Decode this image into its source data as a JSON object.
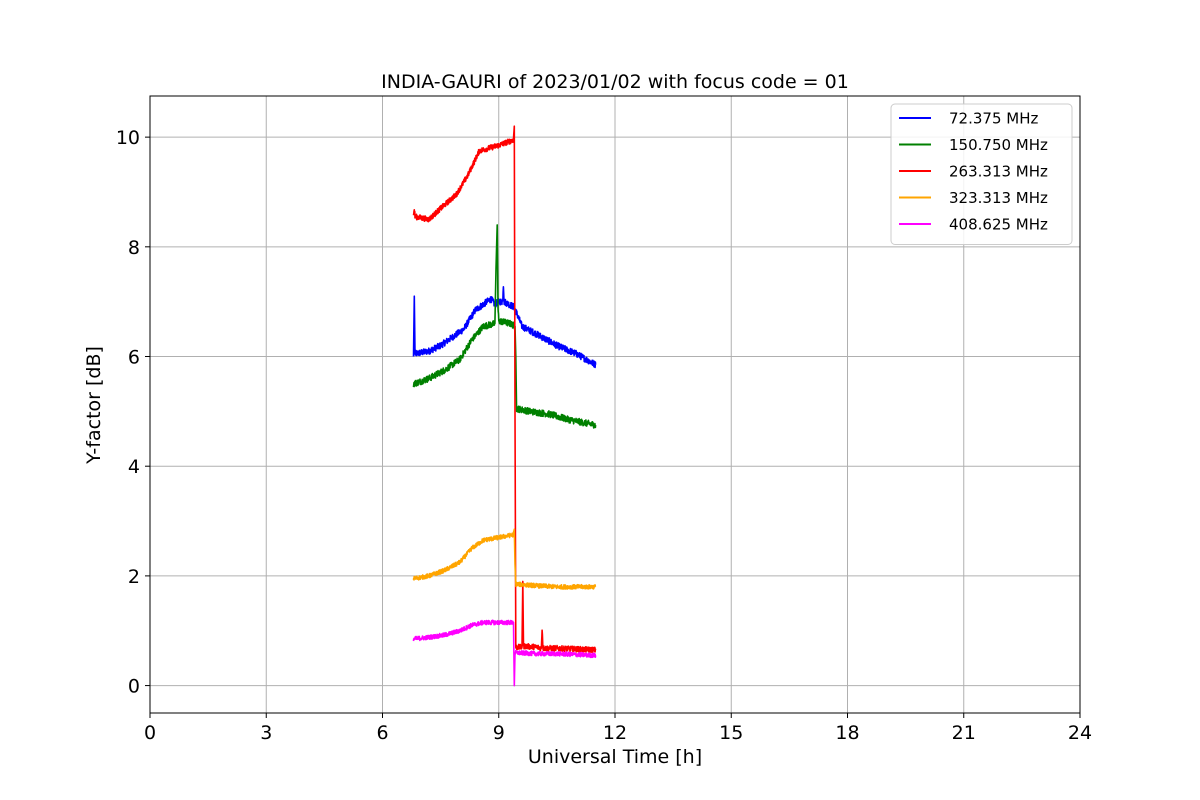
{
  "chart_data": {
    "type": "line",
    "title": "INDIA-GAURI of 2023/01/02 with focus code = 01",
    "xlabel": "Universal Time [h]",
    "ylabel": "Y-factor [dB]",
    "xlim": [
      0,
      24
    ],
    "ylim": [
      -0.5,
      10.75
    ],
    "xticks": [
      0,
      3,
      6,
      9,
      12,
      15,
      18,
      21,
      24
    ],
    "yticks": [
      0,
      2,
      4,
      6,
      8,
      10
    ],
    "grid": true,
    "legend_position": "top-right",
    "series": [
      {
        "name": " 72.375 MHz",
        "color": "#0000ff",
        "noise": 0.06,
        "points": [
          [
            6.8,
            6.0
          ],
          [
            6.82,
            7.1
          ],
          [
            6.84,
            6.05
          ],
          [
            7.2,
            6.1
          ],
          [
            7.5,
            6.2
          ],
          [
            7.8,
            6.35
          ],
          [
            8.1,
            6.5
          ],
          [
            8.4,
            6.85
          ],
          [
            8.7,
            7.0
          ],
          [
            8.8,
            7.05
          ],
          [
            8.9,
            6.95
          ],
          [
            9.0,
            7.0
          ],
          [
            9.1,
            7.0
          ],
          [
            9.12,
            7.3
          ],
          [
            9.14,
            7.0
          ],
          [
            9.4,
            6.9
          ],
          [
            9.6,
            6.55
          ],
          [
            10.0,
            6.4
          ],
          [
            10.5,
            6.2
          ],
          [
            11.0,
            6.05
          ],
          [
            11.5,
            5.85
          ]
        ]
      },
      {
        "name": "150.750 MHz",
        "color": "#008000",
        "noise": 0.06,
        "points": [
          [
            6.8,
            5.5
          ],
          [
            7.2,
            5.6
          ],
          [
            7.6,
            5.75
          ],
          [
            8.0,
            5.95
          ],
          [
            8.3,
            6.3
          ],
          [
            8.6,
            6.55
          ],
          [
            8.9,
            6.6
          ],
          [
            8.93,
            7.6
          ],
          [
            8.96,
            8.4
          ],
          [
            8.98,
            6.9
          ],
          [
            9.0,
            6.65
          ],
          [
            9.3,
            6.6
          ],
          [
            9.42,
            6.55
          ],
          [
            9.44,
            6.0
          ],
          [
            9.46,
            5.05
          ],
          [
            9.8,
            5.0
          ],
          [
            10.3,
            4.95
          ],
          [
            10.8,
            4.85
          ],
          [
            11.5,
            4.75
          ]
        ]
      },
      {
        "name": "263.313 MHz",
        "color": "#ff0000",
        "noise": 0.05,
        "points": [
          [
            6.8,
            8.55
          ],
          [
            6.82,
            8.7
          ],
          [
            6.84,
            8.55
          ],
          [
            7.2,
            8.5
          ],
          [
            7.5,
            8.7
          ],
          [
            7.9,
            8.95
          ],
          [
            8.2,
            9.3
          ],
          [
            8.5,
            9.75
          ],
          [
            9.0,
            9.85
          ],
          [
            9.38,
            9.95
          ],
          [
            9.4,
            10.2
          ],
          [
            9.42,
            5.0
          ],
          [
            9.44,
            0.7
          ],
          [
            9.6,
            0.7
          ],
          [
            9.62,
            1.9
          ],
          [
            9.64,
            0.72
          ],
          [
            10.0,
            0.7
          ],
          [
            10.1,
            0.68
          ],
          [
            10.12,
            1.05
          ],
          [
            10.14,
            0.68
          ],
          [
            10.5,
            0.68
          ],
          [
            11.5,
            0.65
          ]
        ]
      },
      {
        "name": "323.313 MHz",
        "color": "#ffa500",
        "noise": 0.04,
        "points": [
          [
            6.8,
            1.95
          ],
          [
            7.2,
            2.0
          ],
          [
            7.6,
            2.1
          ],
          [
            8.0,
            2.25
          ],
          [
            8.3,
            2.5
          ],
          [
            8.6,
            2.65
          ],
          [
            9.0,
            2.7
          ],
          [
            9.38,
            2.75
          ],
          [
            9.4,
            2.85
          ],
          [
            9.42,
            2.2
          ],
          [
            9.44,
            1.85
          ],
          [
            10.0,
            1.82
          ],
          [
            10.5,
            1.8
          ],
          [
            11.5,
            1.8
          ]
        ]
      },
      {
        "name": "408.625 MHz",
        "color": "#ff00ff",
        "noise": 0.04,
        "points": [
          [
            6.8,
            0.85
          ],
          [
            7.2,
            0.88
          ],
          [
            7.6,
            0.92
          ],
          [
            8.0,
            1.0
          ],
          [
            8.3,
            1.1
          ],
          [
            8.6,
            1.15
          ],
          [
            9.0,
            1.15
          ],
          [
            9.38,
            1.15
          ],
          [
            9.4,
            0.0
          ],
          [
            9.42,
            0.6
          ],
          [
            10.0,
            0.58
          ],
          [
            10.5,
            0.58
          ],
          [
            11.5,
            0.55
          ]
        ]
      }
    ]
  }
}
